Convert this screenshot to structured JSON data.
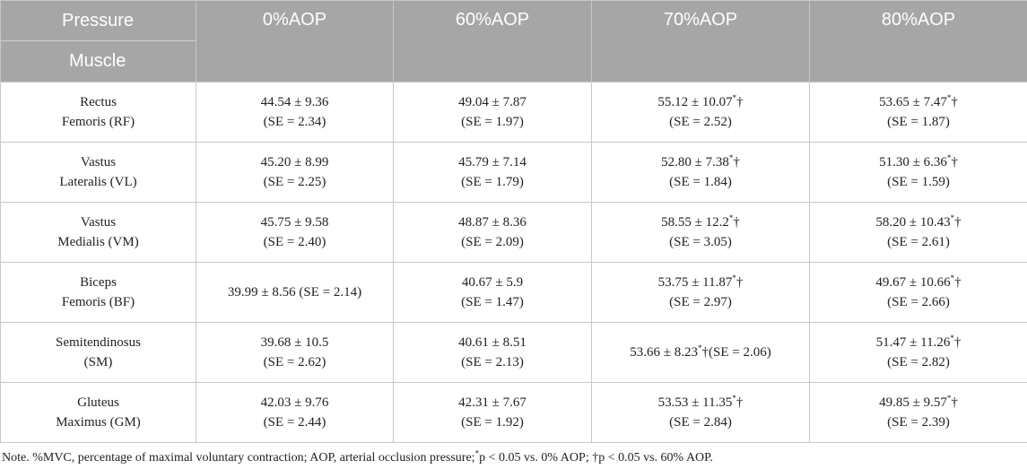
{
  "header": {
    "corner_top": "Pressure",
    "corner_bottom": "Muscle",
    "columns": [
      "0%AOP",
      "60%AOP",
      "70%AOP",
      "80%AOP"
    ]
  },
  "rows": [
    {
      "muscle": [
        "Rectus",
        "Femoris (RF)"
      ],
      "cells": [
        {
          "lines": [
            "44.54 ± 9.36",
            "(SE = 2.34)"
          ],
          "sup": ""
        },
        {
          "lines": [
            "49.04 ± 7.87",
            "(SE = 1.97)"
          ],
          "sup": ""
        },
        {
          "lines": [
            "55.12 ± 10.07",
            "(SE = 2.52)"
          ],
          "sup": "*",
          "after": "†"
        },
        {
          "lines": [
            "53.65 ± 7.47",
            "(SE = 1.87)"
          ],
          "sup": "*",
          "after": "†"
        }
      ]
    },
    {
      "muscle": [
        "Vastus",
        "Lateralis (VL)"
      ],
      "cells": [
        {
          "lines": [
            "45.20 ± 8.99",
            "(SE = 2.25)"
          ],
          "sup": ""
        },
        {
          "lines": [
            "45.79 ± 7.14",
            "(SE = 1.79)"
          ],
          "sup": ""
        },
        {
          "lines": [
            "52.80 ± 7.38",
            "(SE = 1.84)"
          ],
          "sup": "*",
          "after": "†"
        },
        {
          "lines": [
            "51.30 ± 6.36",
            "(SE = 1.59)"
          ],
          "sup": "*",
          "after": "†"
        }
      ]
    },
    {
      "muscle": [
        "Vastus",
        "Medialis (VM)"
      ],
      "cells": [
        {
          "lines": [
            "45.75 ± 9.58",
            "(SE = 2.40)"
          ],
          "sup": ""
        },
        {
          "lines": [
            "48.87 ± 8.36",
            "(SE = 2.09)"
          ],
          "sup": ""
        },
        {
          "lines": [
            "58.55 ± 12.2",
            "(SE = 3.05)"
          ],
          "sup": "*",
          "after": "†"
        },
        {
          "lines": [
            "58.20 ± 10.43",
            "(SE = 2.61)"
          ],
          "sup": "*",
          "after": "†"
        }
      ]
    },
    {
      "muscle": [
        "Biceps",
        "Femoris (BF)"
      ],
      "cells": [
        {
          "lines": [
            "39.99 ± 8.56 (SE = 2.14)"
          ],
          "sup": ""
        },
        {
          "lines": [
            "40.67 ± 5.9",
            "(SE = 1.47)"
          ],
          "sup": ""
        },
        {
          "lines": [
            "53.75 ± 11.87",
            "(SE = 2.97)"
          ],
          "sup": "*",
          "after": "†"
        },
        {
          "lines": [
            "49.67 ± 10.66",
            "(SE = 2.66)"
          ],
          "sup": "*",
          "after": "†"
        }
      ]
    },
    {
      "muscle": [
        "Semitendinosus",
        "(SM)"
      ],
      "cells": [
        {
          "lines": [
            "39.68 ± 10.5",
            "(SE = 2.62)"
          ],
          "sup": ""
        },
        {
          "lines": [
            "40.61 ± 8.51",
            "(SE = 2.13)"
          ],
          "sup": ""
        },
        {
          "lines": [
            "53.66 ± 8.23"
          ],
          "sup": "*",
          "after": "†(SE = 2.06)"
        },
        {
          "lines": [
            "51.47 ± 11.26",
            "(SE = 2.82)"
          ],
          "sup": "*",
          "after": "†"
        }
      ]
    },
    {
      "muscle": [
        "Gluteus",
        "Maximus (GM)"
      ],
      "cells": [
        {
          "lines": [
            "42.03 ± 9.76",
            "(SE = 2.44)"
          ],
          "sup": ""
        },
        {
          "lines": [
            "42.31 ± 7.67",
            "(SE = 1.92)"
          ],
          "sup": ""
        },
        {
          "lines": [
            "53.53 ± 11.35",
            "(SE = 2.84)"
          ],
          "sup": "*",
          "after": "†"
        },
        {
          "lines": [
            "49.85 ± 9.57",
            "(SE = 2.39)"
          ],
          "sup": "*",
          "after": "†"
        }
      ]
    }
  ],
  "note": {
    "before": "Note. %MVC, percentage of maximal voluntary contraction; AOP, arterial occlusion pressure;",
    "sup": "*",
    "after": "p < 0.05 vs. 0% AOP; †p < 0.05 vs. 60% AOP."
  },
  "colors": {
    "header_bg": "#a6a6a6",
    "header_text": "#ffffff",
    "grid": "#c8c8c8",
    "body_text": "#222222"
  }
}
